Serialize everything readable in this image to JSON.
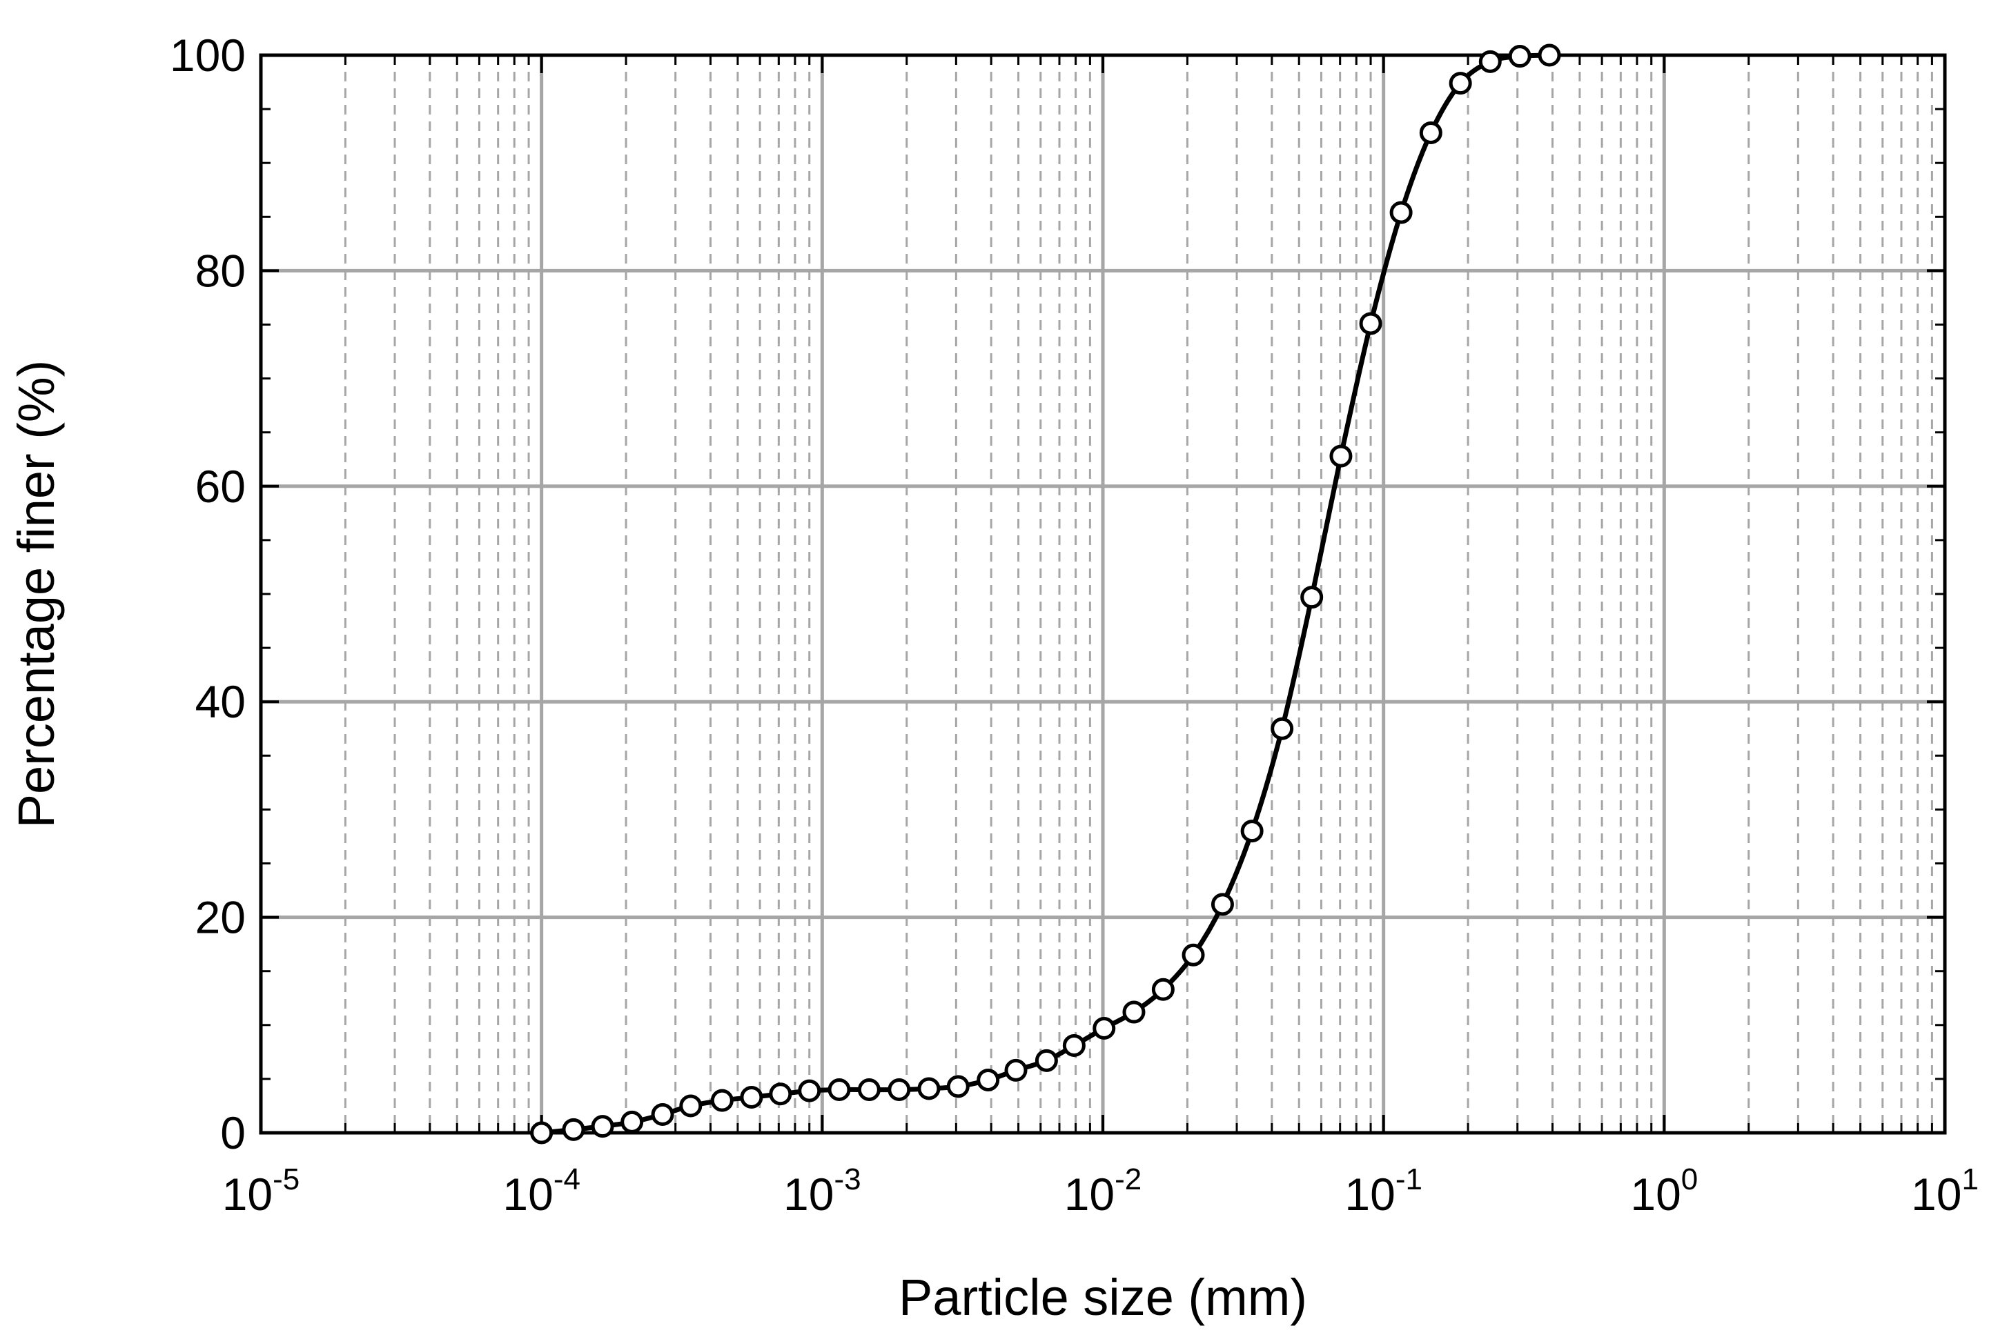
{
  "chart_data": {
    "type": "line",
    "title": "",
    "xlabel": "Particle size (mm)",
    "ylabel": "Percentage finer (%)",
    "x_scale": "log",
    "xlim": [
      1e-05,
      10
    ],
    "ylim": [
      0,
      100
    ],
    "grid": true,
    "legend": "none",
    "x_ticks": [
      {
        "base": "10",
        "exp": "-5"
      },
      {
        "base": "10",
        "exp": "-4"
      },
      {
        "base": "10",
        "exp": "-3"
      },
      {
        "base": "10",
        "exp": "-2"
      },
      {
        "base": "10",
        "exp": "-1"
      },
      {
        "base": "10",
        "exp": "0"
      },
      {
        "base": "10",
        "exp": "1"
      }
    ],
    "y_ticks": [
      "0",
      "20",
      "40",
      "60",
      "80",
      "100"
    ],
    "colors": {
      "line": "#000000",
      "marker_fill": "#ffffff",
      "grid_major": "#a6a6a6",
      "grid_minor": "#a6a6a6"
    },
    "series": [
      {
        "marker": "open-circle",
        "x": [
          0.0001,
          0.00013,
          0.000165,
          0.00021,
          0.00027,
          0.00034,
          0.00044,
          0.00056,
          0.00071,
          0.0009,
          0.00115,
          0.00147,
          0.00188,
          0.0024,
          0.00305,
          0.0039,
          0.0049,
          0.0063,
          0.0079,
          0.0101,
          0.0129,
          0.0164,
          0.021,
          0.0267,
          0.034,
          0.0435,
          0.0555,
          0.0705,
          0.09,
          0.1155,
          0.1475,
          0.188,
          0.24,
          0.306,
          0.39
        ],
        "y": [
          0,
          0.3,
          0.6,
          1.0,
          1.7,
          2.5,
          3.0,
          3.3,
          3.6,
          3.9,
          4.0,
          4.0,
          4.0,
          4.1,
          4.3,
          4.9,
          5.8,
          6.7,
          8.1,
          9.7,
          11.2,
          13.3,
          16.5,
          21.2,
          28.0,
          37.5,
          49.7,
          62.8,
          75.1,
          85.4,
          92.8,
          97.4,
          99.4,
          99.9,
          100
        ]
      }
    ]
  }
}
